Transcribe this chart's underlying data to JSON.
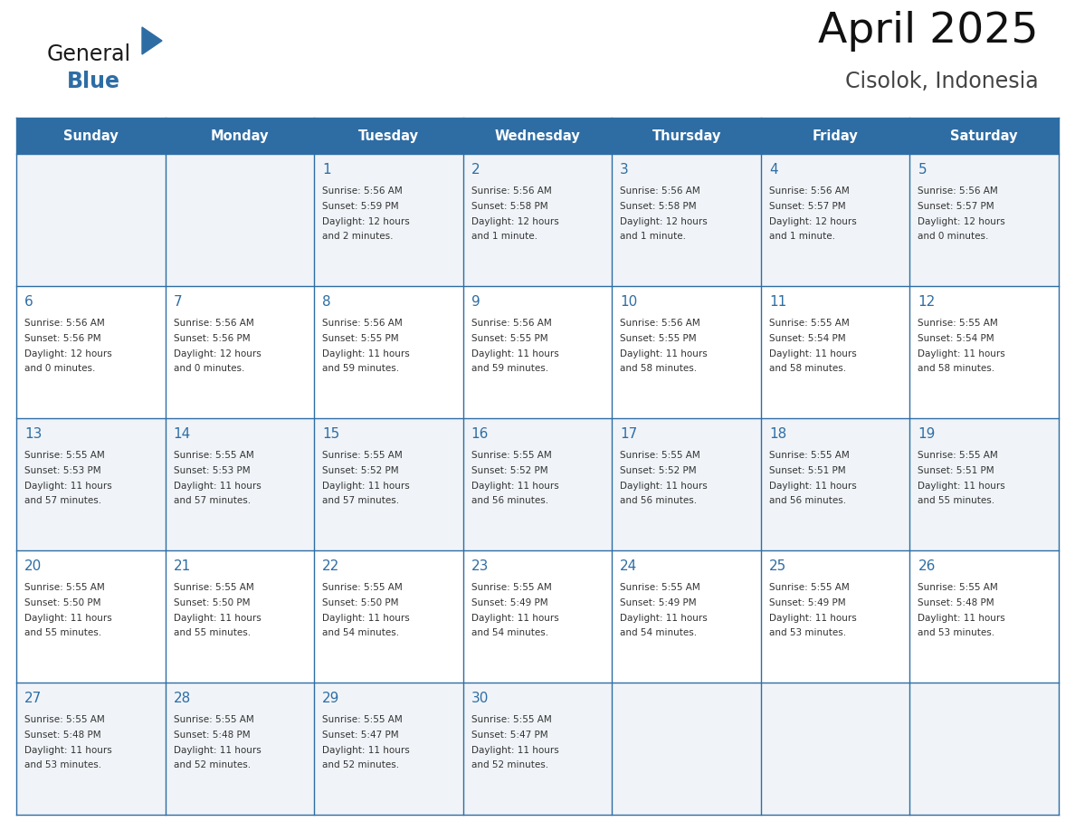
{
  "title": "April 2025",
  "subtitle": "Cisolok, Indonesia",
  "header_bg_color": "#2E6DA4",
  "header_text_color": "#FFFFFF",
  "day_names": [
    "Sunday",
    "Monday",
    "Tuesday",
    "Wednesday",
    "Thursday",
    "Friday",
    "Saturday"
  ],
  "row_colors": [
    "#F0F4F8",
    "#FFFFFF"
  ],
  "border_color": "#2E6DA4",
  "number_color": "#2E6DA4",
  "text_color": "#333333",
  "logo_general_color": "#1a1a1a",
  "logo_blue_color": "#2E6DA4",
  "cells": [
    {
      "date": null,
      "sunrise": null,
      "sunset": null,
      "daylight": null
    },
    {
      "date": null,
      "sunrise": null,
      "sunset": null,
      "daylight": null
    },
    {
      "date": "1",
      "sunrise": "5:56 AM",
      "sunset": "5:59 PM",
      "daylight": "12 hours and 2 minutes."
    },
    {
      "date": "2",
      "sunrise": "5:56 AM",
      "sunset": "5:58 PM",
      "daylight": "12 hours and 1 minute."
    },
    {
      "date": "3",
      "sunrise": "5:56 AM",
      "sunset": "5:58 PM",
      "daylight": "12 hours and 1 minute."
    },
    {
      "date": "4",
      "sunrise": "5:56 AM",
      "sunset": "5:57 PM",
      "daylight": "12 hours and 1 minute."
    },
    {
      "date": "5",
      "sunrise": "5:56 AM",
      "sunset": "5:57 PM",
      "daylight": "12 hours and 0 minutes."
    },
    {
      "date": "6",
      "sunrise": "5:56 AM",
      "sunset": "5:56 PM",
      "daylight": "12 hours and 0 minutes."
    },
    {
      "date": "7",
      "sunrise": "5:56 AM",
      "sunset": "5:56 PM",
      "daylight": "12 hours and 0 minutes."
    },
    {
      "date": "8",
      "sunrise": "5:56 AM",
      "sunset": "5:55 PM",
      "daylight": "11 hours and 59 minutes."
    },
    {
      "date": "9",
      "sunrise": "5:56 AM",
      "sunset": "5:55 PM",
      "daylight": "11 hours and 59 minutes."
    },
    {
      "date": "10",
      "sunrise": "5:56 AM",
      "sunset": "5:55 PM",
      "daylight": "11 hours and 58 minutes."
    },
    {
      "date": "11",
      "sunrise": "5:55 AM",
      "sunset": "5:54 PM",
      "daylight": "11 hours and 58 minutes."
    },
    {
      "date": "12",
      "sunrise": "5:55 AM",
      "sunset": "5:54 PM",
      "daylight": "11 hours and 58 minutes."
    },
    {
      "date": "13",
      "sunrise": "5:55 AM",
      "sunset": "5:53 PM",
      "daylight": "11 hours and 57 minutes."
    },
    {
      "date": "14",
      "sunrise": "5:55 AM",
      "sunset": "5:53 PM",
      "daylight": "11 hours and 57 minutes."
    },
    {
      "date": "15",
      "sunrise": "5:55 AM",
      "sunset": "5:52 PM",
      "daylight": "11 hours and 57 minutes."
    },
    {
      "date": "16",
      "sunrise": "5:55 AM",
      "sunset": "5:52 PM",
      "daylight": "11 hours and 56 minutes."
    },
    {
      "date": "17",
      "sunrise": "5:55 AM",
      "sunset": "5:52 PM",
      "daylight": "11 hours and 56 minutes."
    },
    {
      "date": "18",
      "sunrise": "5:55 AM",
      "sunset": "5:51 PM",
      "daylight": "11 hours and 56 minutes."
    },
    {
      "date": "19",
      "sunrise": "5:55 AM",
      "sunset": "5:51 PM",
      "daylight": "11 hours and 55 minutes."
    },
    {
      "date": "20",
      "sunrise": "5:55 AM",
      "sunset": "5:50 PM",
      "daylight": "11 hours and 55 minutes."
    },
    {
      "date": "21",
      "sunrise": "5:55 AM",
      "sunset": "5:50 PM",
      "daylight": "11 hours and 55 minutes."
    },
    {
      "date": "22",
      "sunrise": "5:55 AM",
      "sunset": "5:50 PM",
      "daylight": "11 hours and 54 minutes."
    },
    {
      "date": "23",
      "sunrise": "5:55 AM",
      "sunset": "5:49 PM",
      "daylight": "11 hours and 54 minutes."
    },
    {
      "date": "24",
      "sunrise": "5:55 AM",
      "sunset": "5:49 PM",
      "daylight": "11 hours and 54 minutes."
    },
    {
      "date": "25",
      "sunrise": "5:55 AM",
      "sunset": "5:49 PM",
      "daylight": "11 hours and 53 minutes."
    },
    {
      "date": "26",
      "sunrise": "5:55 AM",
      "sunset": "5:48 PM",
      "daylight": "11 hours and 53 minutes."
    },
    {
      "date": "27",
      "sunrise": "5:55 AM",
      "sunset": "5:48 PM",
      "daylight": "11 hours and 53 minutes."
    },
    {
      "date": "28",
      "sunrise": "5:55 AM",
      "sunset": "5:48 PM",
      "daylight": "11 hours and 52 minutes."
    },
    {
      "date": "29",
      "sunrise": "5:55 AM",
      "sunset": "5:47 PM",
      "daylight": "11 hours and 52 minutes."
    },
    {
      "date": "30",
      "sunrise": "5:55 AM",
      "sunset": "5:47 PM",
      "daylight": "11 hours and 52 minutes."
    },
    {
      "date": null,
      "sunrise": null,
      "sunset": null,
      "daylight": null
    },
    {
      "date": null,
      "sunrise": null,
      "sunset": null,
      "daylight": null
    },
    {
      "date": null,
      "sunrise": null,
      "sunset": null,
      "daylight": null
    }
  ]
}
